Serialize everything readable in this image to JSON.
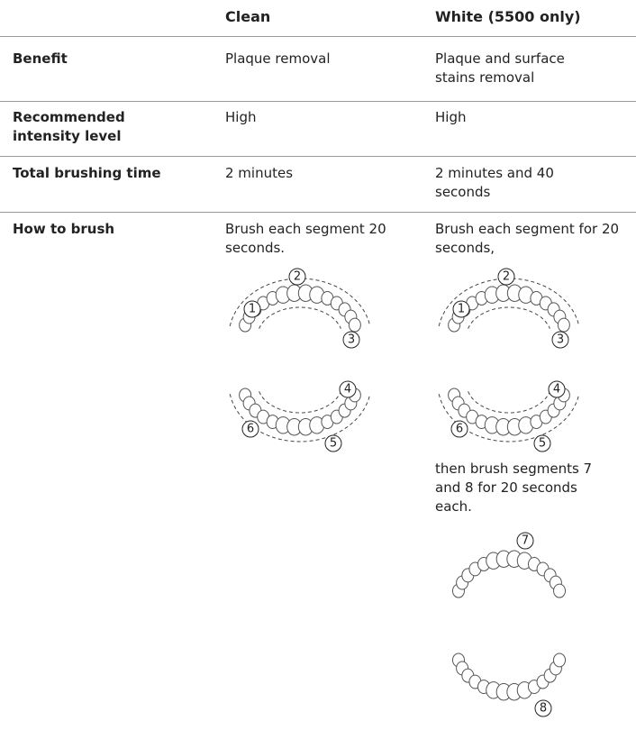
{
  "table": {
    "headers": [
      "Clean",
      "White (5500 only)"
    ],
    "rows": [
      {
        "label": "Benefit",
        "cells": [
          "Plaque removal",
          "Plaque and surface stains removal"
        ]
      },
      {
        "label": "Recommended intensity level",
        "cells": [
          "High",
          "High"
        ]
      },
      {
        "label": "Total brushing time",
        "cells": [
          "2 minutes",
          "2 minutes and 40 seconds"
        ]
      }
    ],
    "how_to_brush": {
      "label": "How to brush",
      "clean": {
        "text": "Brush each segment 20 seconds.",
        "upper_segments": [
          "1",
          "2",
          "3"
        ],
        "lower_segments": [
          "4",
          "5",
          "6"
        ]
      },
      "white": {
        "text": "Brush each segment for 20 seconds,",
        "upper_segments": [
          "1",
          "2",
          "3"
        ],
        "lower_segments": [
          "4",
          "5",
          "6"
        ],
        "text2": "then brush segments 7 and 8 for 20 seconds each.",
        "extra_upper": [
          "7"
        ],
        "extra_lower": [
          "8"
        ]
      }
    }
  }
}
